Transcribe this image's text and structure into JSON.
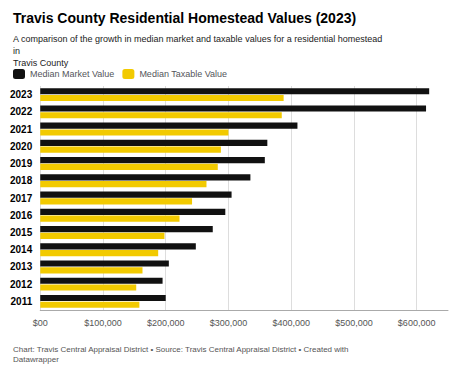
{
  "chart_data": {
    "type": "bar",
    "orientation": "horizontal",
    "title": "Travis County Residential Homestead Values (2023)",
    "subtitle": "A comparison of the growth in median market and taxable values for a residential homestead in\nTravis County",
    "footer": "Chart: Travis Central Appraisal District • Source: Travis Central Appraisal District • Created with Datawrapper",
    "categories": [
      "2023",
      "2022",
      "2021",
      "2020",
      "2019",
      "2018",
      "2017",
      "2016",
      "2015",
      "2014",
      "2013",
      "2012",
      "2011"
    ],
    "series": [
      {
        "name": "Median Market Value",
        "color": "#111111",
        "values": [
          620000,
          615000,
          410000,
          362000,
          358000,
          335000,
          305000,
          295000,
          275000,
          248000,
          205000,
          195000,
          200000
        ]
      },
      {
        "name": "Median Taxable Value",
        "color": "#f2ca00",
        "values": [
          388000,
          385000,
          300000,
          288000,
          283000,
          265000,
          242000,
          222000,
          198000,
          188000,
          163000,
          153000,
          158000
        ]
      }
    ],
    "xlim": [
      0,
      650000
    ],
    "xticks": [
      {
        "value": 0,
        "label": "$00"
      },
      {
        "value": 100000,
        "label": "$100,000"
      },
      {
        "value": 200000,
        "label": "$200,000"
      },
      {
        "value": 300000,
        "label": "$300,000"
      },
      {
        "value": 400000,
        "label": "$400,000"
      },
      {
        "value": 500000,
        "label": "$500,000"
      },
      {
        "value": 600000,
        "label": "$600,000"
      }
    ],
    "grid": true,
    "legend": "upper left"
  }
}
